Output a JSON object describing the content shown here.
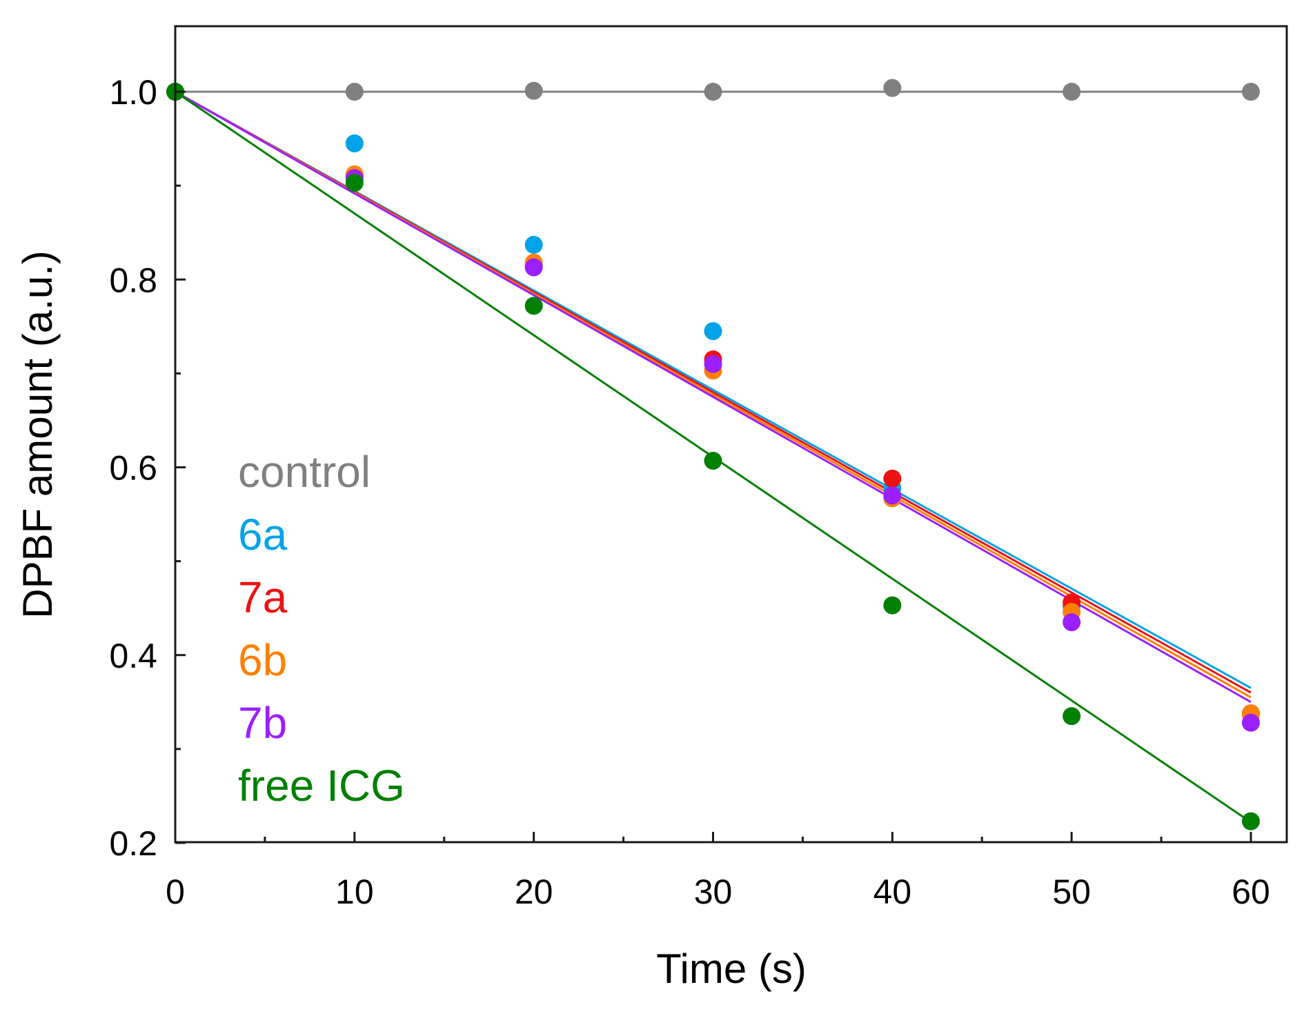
{
  "chart_data": {
    "type": "scatter",
    "title": "",
    "xlabel": "Time (s)",
    "ylabel": "DPBF amount (a.u.)",
    "xlim": [
      0,
      62
    ],
    "ylim": [
      0.2,
      1.07
    ],
    "grid": false,
    "x_ticks": [
      0,
      10,
      20,
      30,
      40,
      50,
      60
    ],
    "x_tick_labels": [
      "0",
      "10",
      "20",
      "30",
      "40",
      "50",
      "60"
    ],
    "x_minor_ticks": [
      5,
      15,
      25,
      35,
      45,
      55
    ],
    "y_ticks": [
      0.2,
      0.4,
      0.6,
      0.8,
      1.0
    ],
    "y_tick_labels": [
      "0.2",
      "0.4",
      "0.6",
      "0.8",
      "1.0"
    ],
    "y_minor_ticks": [
      0.3,
      0.5,
      0.7,
      0.9
    ],
    "legend_position": "left-center",
    "x": [
      0,
      10,
      20,
      30,
      40,
      50,
      60
    ],
    "series": [
      {
        "name": "control",
        "color": "#808080",
        "values": [
          1.0,
          1.0,
          1.001,
          1.0,
          1.004,
          1.0,
          1.0
        ],
        "fit": [
          1.0,
          1.0
        ]
      },
      {
        "name": "6a",
        "color": "#00a2e8",
        "values": [
          1.0,
          0.945,
          0.837,
          0.745,
          0.578,
          0.452,
          0.338
        ],
        "fit": [
          1.0,
          0.365
        ]
      },
      {
        "name": "7a",
        "color": "#ee1111",
        "values": [
          1.0,
          0.91,
          0.815,
          0.715,
          0.588,
          0.456,
          0.337
        ],
        "fit": [
          1.0,
          0.36
        ]
      },
      {
        "name": "6b",
        "color": "#ff8000",
        "values": [
          1.0,
          0.912,
          0.818,
          0.703,
          0.567,
          0.446,
          0.338
        ],
        "fit": [
          1.0,
          0.355
        ]
      },
      {
        "name": "7b",
        "color": "#9b1fff",
        "values": [
          1.0,
          0.908,
          0.813,
          0.71,
          0.57,
          0.435,
          0.328
        ],
        "fit": [
          1.0,
          0.35
        ]
      },
      {
        "name": "free ICG",
        "color": "#008000",
        "values": [
          1.0,
          0.903,
          0.772,
          0.607,
          0.453,
          0.335,
          0.223
        ],
        "fit": [
          1.0,
          0.222
        ]
      }
    ]
  }
}
